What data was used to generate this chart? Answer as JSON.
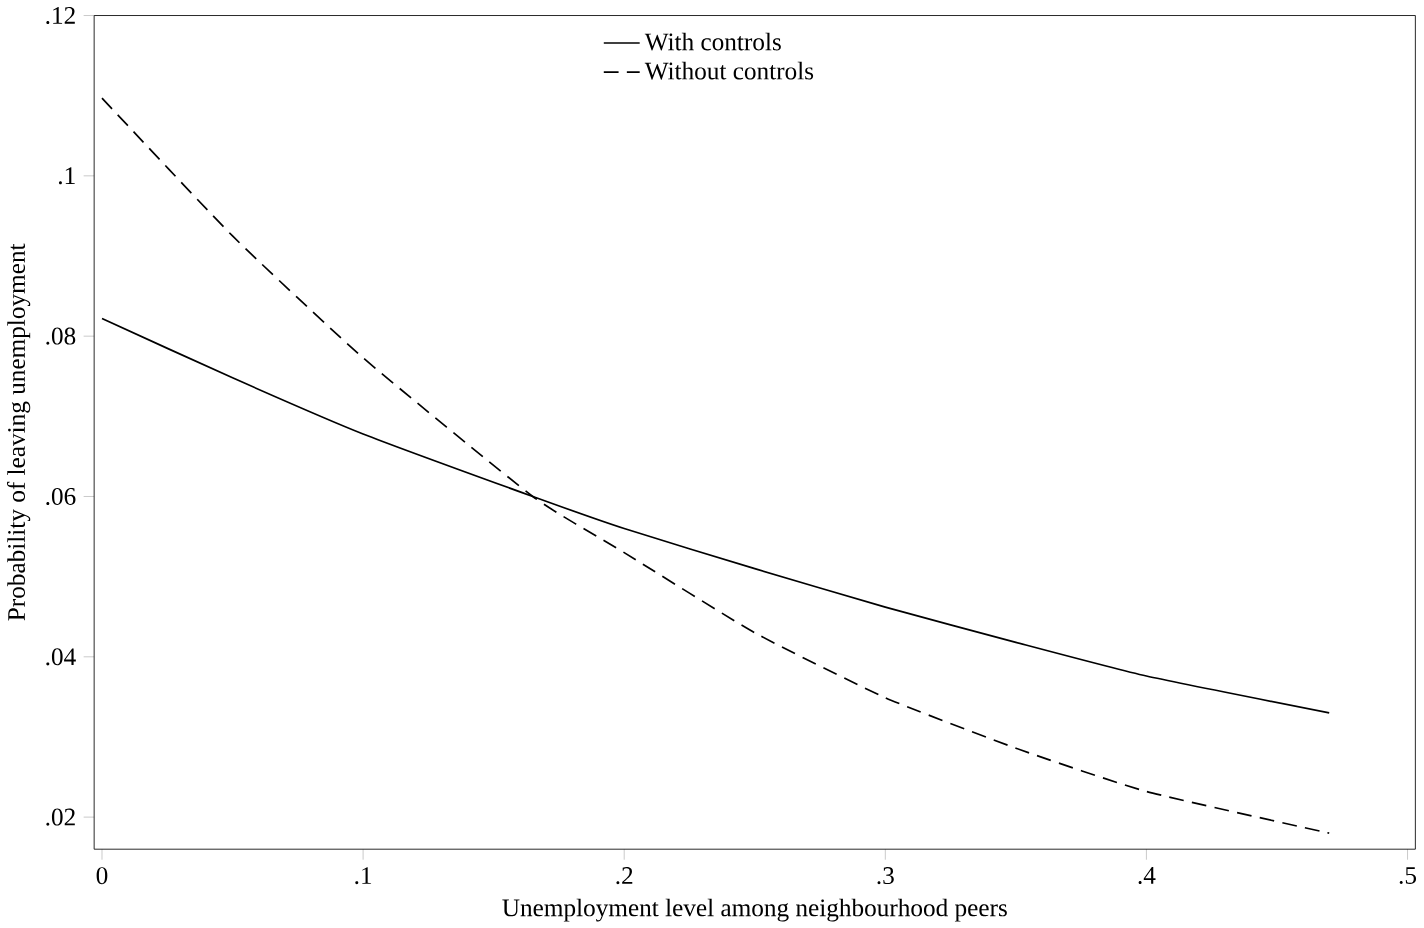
{
  "chart_data": {
    "type": "line",
    "xlabel": "Unemployment level among neighbourhood peers",
    "ylabel": "Probability of leaving unemployment",
    "xlim": [
      -0.003,
      0.503
    ],
    "ylim": [
      0.016,
      0.12
    ],
    "xticks": [
      {
        "value": 0,
        "label": "0"
      },
      {
        "value": 0.1,
        "label": ".1"
      },
      {
        "value": 0.2,
        "label": ".2"
      },
      {
        "value": 0.3,
        "label": ".3"
      },
      {
        "value": 0.4,
        "label": ".4"
      },
      {
        "value": 0.5,
        "label": ".5"
      }
    ],
    "yticks": [
      {
        "value": 0.02,
        "label": ".02"
      },
      {
        "value": 0.04,
        "label": ".04"
      },
      {
        "value": 0.06,
        "label": ".06"
      },
      {
        "value": 0.08,
        "label": ".08"
      },
      {
        "value": 0.1,
        "label": ".1"
      },
      {
        "value": 0.12,
        "label": ".12"
      }
    ],
    "grid": false,
    "legend": "top right",
    "marker": "none",
    "series": [
      {
        "name": "With controls",
        "color": "#000000",
        "line_style": "solid",
        "x": [
          0,
          0.05,
          0.1,
          0.165,
          0.2,
          0.25,
          0.3,
          0.35,
          0.4,
          0.47
        ],
        "values": [
          0.0822,
          0.0748,
          0.0678,
          0.06,
          0.056,
          0.051,
          0.0462,
          0.0418,
          0.0376,
          0.033
        ]
      },
      {
        "name": "Without controls",
        "color": "#000000",
        "line_style": "dashed",
        "x": [
          0,
          0.05,
          0.1,
          0.165,
          0.2,
          0.25,
          0.3,
          0.35,
          0.4,
          0.47
        ],
        "values": [
          0.1097,
          0.0925,
          0.0773,
          0.06,
          0.053,
          0.043,
          0.0349,
          0.0286,
          0.0232,
          0.018
        ]
      }
    ]
  }
}
